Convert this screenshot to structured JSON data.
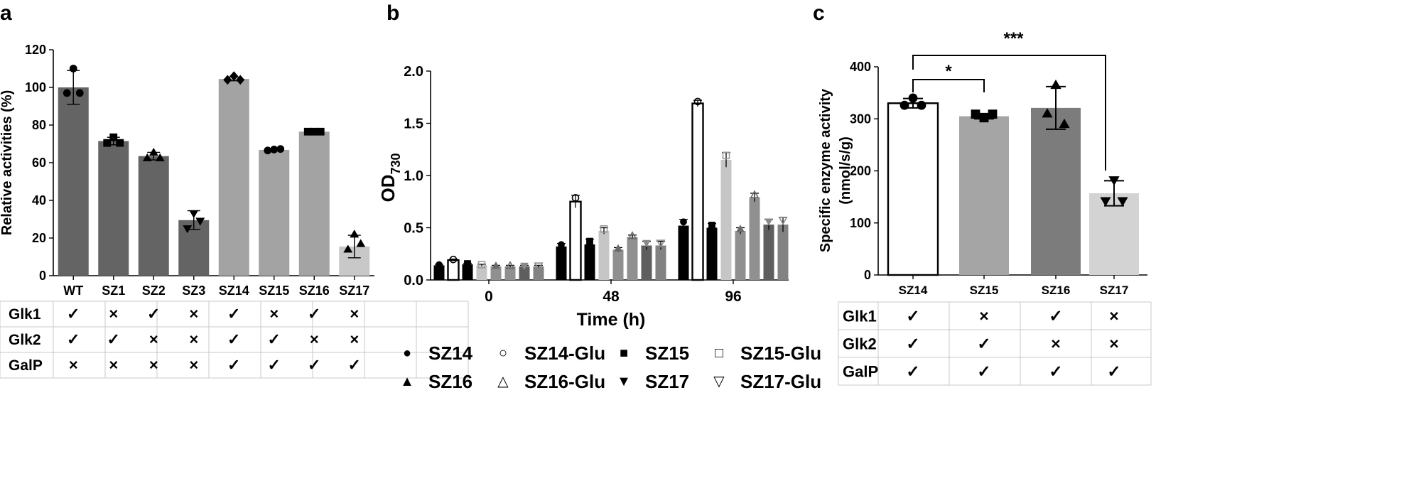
{
  "chart_data": [
    {
      "panel": "a",
      "type": "bar",
      "ylabel": "Relative activities (%)",
      "ylim": [
        0,
        120
      ],
      "yticks": [
        0,
        20,
        40,
        60,
        80,
        100,
        120
      ],
      "categories": [
        "WT",
        "SZ1",
        "SZ2",
        "SZ3",
        "SZ14",
        "SZ15",
        "SZ16",
        "SZ17"
      ],
      "values": [
        100,
        71.5,
        63.5,
        29.5,
        104.5,
        66.8,
        76.5,
        15.5
      ],
      "sd": [
        9,
        2,
        2,
        5,
        1,
        0.5,
        0.5,
        6
      ],
      "colors": [
        "#646464",
        "#646464",
        "#646464",
        "#646464",
        "#a3a3a3",
        "#a3a3a3",
        "#a3a3a3",
        "#c8c8c8"
      ],
      "markers": [
        "circle",
        "square",
        "triangle",
        "triangle-down",
        "diamond",
        "circle",
        "square",
        "triangle"
      ],
      "points": [
        [
          110,
          97,
          97
        ],
        [
          73.5,
          70.5,
          70.5
        ],
        [
          65.5,
          62.5,
          62.5
        ],
        [
          33,
          25,
          29
        ],
        [
          106,
          104,
          104
        ],
        [
          67,
          66.5,
          67.3
        ],
        [
          76.5,
          76.5,
          76.5
        ],
        [
          22,
          14,
          17
        ]
      ],
      "genotype_table": {
        "rows": [
          {
            "label": "Glk1",
            "cells": [
              "✓",
              "×",
              "✓",
              "×",
              "✓",
              "×",
              "✓",
              "×"
            ]
          },
          {
            "label": "Glk2",
            "cells": [
              "✓",
              "✓",
              "×",
              "×",
              "✓",
              "✓",
              "×",
              "×"
            ]
          },
          {
            "label": "GalP",
            "cells": [
              "×",
              "×",
              "×",
              "×",
              "✓",
              "✓",
              "✓",
              "✓"
            ]
          }
        ]
      }
    },
    {
      "panel": "b",
      "type": "bar",
      "xlabel": "Time (h)",
      "ylabel_main": "OD",
      "ylabel_sub": "730",
      "ylim": [
        0,
        2.0
      ],
      "yticks": [
        "0.0",
        "0.5",
        "1.0",
        "1.5",
        "2.0"
      ],
      "categories": [
        "0",
        "48",
        "96"
      ],
      "series": [
        {
          "name": "SZ14",
          "color": "#000000",
          "hollow": false,
          "marker": "circle",
          "values": [
            0.14,
            0.32,
            0.52
          ],
          "sd": [
            0.01,
            0.03,
            0.06
          ]
        },
        {
          "name": "SZ14-Glu",
          "color": "#000000",
          "hollow": true,
          "marker": "circle-open",
          "values": [
            0.19,
            0.75,
            1.69
          ],
          "sd": [
            0.01,
            0.06,
            0.03
          ]
        },
        {
          "name": "SZ15",
          "color": "#000000",
          "hollow": false,
          "marker": "square",
          "values": [
            0.15,
            0.34,
            0.5
          ],
          "sd": [
            0.01,
            0.05,
            0.04
          ]
        },
        {
          "name": "SZ15-Glu",
          "color": "#c6c6c6",
          "hollow": false,
          "marker": "square-open",
          "values": [
            0.14,
            0.47,
            1.15
          ],
          "sd": [
            0.01,
            0.03,
            0.07
          ]
        },
        {
          "name": "SZ16",
          "color": "#909090",
          "hollow": false,
          "marker": "triangle",
          "values": [
            0.13,
            0.29,
            0.47
          ],
          "sd": [
            0.01,
            0.02,
            0.03
          ]
        },
        {
          "name": "SZ16-Glu",
          "color": "#909090",
          "hollow": false,
          "marker": "triangle-open",
          "values": [
            0.13,
            0.41,
            0.79
          ],
          "sd": [
            0.01,
            0.02,
            0.04
          ]
        },
        {
          "name": "SZ17",
          "color": "#5e5e5e",
          "hollow": false,
          "marker": "triangle-down",
          "values": [
            0.13,
            0.33,
            0.53
          ],
          "sd": [
            0.01,
            0.04,
            0.05
          ]
        },
        {
          "name": "SZ17-Glu",
          "color": "#828282",
          "hollow": false,
          "marker": "triangle-down-open",
          "values": [
            0.13,
            0.33,
            0.53
          ],
          "sd": [
            0.01,
            0.04,
            0.07
          ]
        }
      ],
      "legend": [
        {
          "label": "SZ14",
          "symbol": "●",
          "color": "#000000"
        },
        {
          "label": "SZ14-Glu",
          "symbol": "○",
          "color": "#000000"
        },
        {
          "label": "SZ15",
          "symbol": "■",
          "color": "#000000"
        },
        {
          "label": "SZ15-Glu",
          "symbol": "□",
          "color": "#9a9a9a"
        },
        {
          "label": "SZ16",
          "symbol": "▲",
          "color": "#8a8a8a"
        },
        {
          "label": "SZ16-Glu",
          "symbol": "△",
          "color": "#555555"
        },
        {
          "label": "SZ17",
          "symbol": "▼",
          "color": "#cfcfcf"
        },
        {
          "label": "SZ17-Glu",
          "symbol": "▽",
          "color": "#8a8a8a"
        }
      ]
    },
    {
      "panel": "c",
      "type": "bar",
      "ylabel_line1": "Specific enzyme activity",
      "ylabel_line2": "(nmol/s/g)",
      "ylim": [
        0,
        400
      ],
      "yticks": [
        0,
        100,
        200,
        300,
        400
      ],
      "categories": [
        "SZ14",
        "SZ15",
        "SZ16",
        "SZ17"
      ],
      "values": [
        330,
        305,
        321,
        157
      ],
      "sd": [
        9,
        5,
        41,
        24
      ],
      "colors": [
        "#ffffff",
        "#a5a5a5",
        "#7c7c7c",
        "#d3d3d3"
      ],
      "markers": [
        "circle",
        "square",
        "triangle",
        "triangle-down"
      ],
      "points": [
        [
          340,
          326,
          326
        ],
        [
          302,
          309,
          309
        ],
        [
          365,
          310,
          290
        ],
        [
          182,
          142,
          142
        ]
      ],
      "significance": [
        {
          "from": 0,
          "to": 1,
          "label": "*"
        },
        {
          "from": 0,
          "to": 3,
          "label": "***"
        }
      ],
      "genotype_table": {
        "rows": [
          {
            "label": "Glk1",
            "cells": [
              "✓",
              "×",
              "✓",
              "×"
            ]
          },
          {
            "label": "Glk2",
            "cells": [
              "✓",
              "✓",
              "×",
              "×"
            ]
          },
          {
            "label": "GalP",
            "cells": [
              "✓",
              "✓",
              "✓",
              "✓"
            ]
          }
        ]
      }
    }
  ]
}
